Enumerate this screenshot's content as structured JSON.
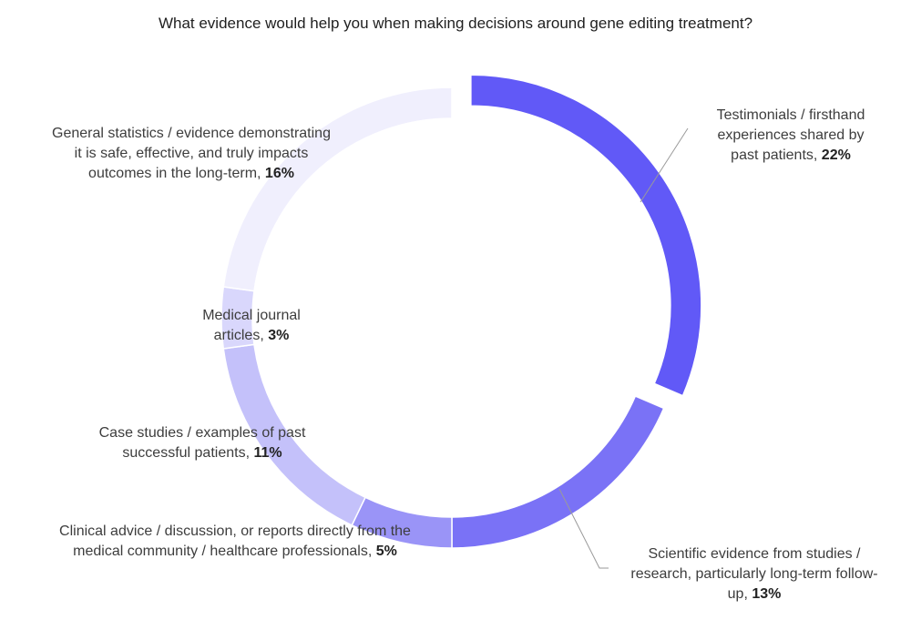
{
  "chart_data": {
    "type": "pie",
    "style": "donut",
    "title": "What evidence would help you when making decisions around gene editing treatment?",
    "slices": [
      {
        "label_lines": [
          "Testimonials / firsthand",
          "experiences shared by",
          "past patients,"
        ],
        "value": 22,
        "value_label": "22%",
        "color": "#6159f7",
        "exploded": true
      },
      {
        "label_lines": [
          "Scientific evidence from studies /",
          "research, particularly long-term follow-",
          "up,"
        ],
        "value": 13,
        "value_label": "13%",
        "color": "#7a72f6",
        "exploded": false
      },
      {
        "label_lines": [
          "Clinical advice / discussion, or reports directly from the",
          "medical community / healthcare professionals,"
        ],
        "value": 5,
        "value_label": "5%",
        "color": "#9a94f7",
        "exploded": false
      },
      {
        "label_lines": [
          "Case studies / examples of past",
          "successful patients,"
        ],
        "value": 11,
        "value_label": "11%",
        "color": "#c4c1fa",
        "exploded": false
      },
      {
        "label_lines": [
          "Medical journal",
          "articles,"
        ],
        "value": 3,
        "value_label": "3%",
        "color": "#d9d7fc",
        "exploded": false
      },
      {
        "label_lines": [
          "General statistics / evidence demonstrating",
          "it is safe, effective, and truly impacts",
          "outcomes in the long-term,"
        ],
        "value": 16,
        "value_label": "16%",
        "color": "#f0effd",
        "exploded": false
      }
    ]
  }
}
